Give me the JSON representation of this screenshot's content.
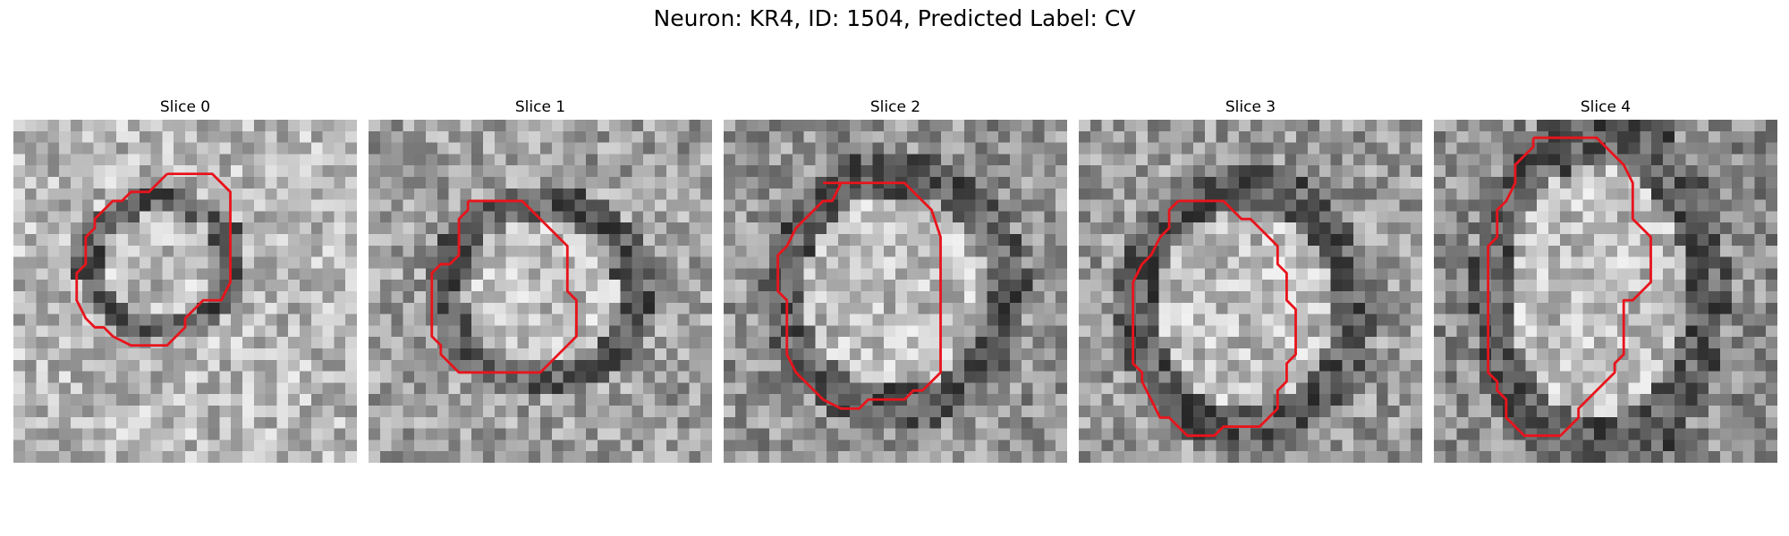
{
  "figure": {
    "title": "Neuron: KR4, ID: 1504, Predicted Label: CV"
  },
  "slices": [
    {
      "title": "Slice 0",
      "contour": [
        [
          17,
          6
        ],
        [
          22,
          6
        ],
        [
          24,
          8
        ],
        [
          24,
          18
        ],
        [
          23,
          20
        ],
        [
          21,
          20
        ],
        [
          19,
          22
        ],
        [
          19,
          23
        ],
        [
          17,
          25
        ],
        [
          13,
          25
        ],
        [
          11,
          24
        ],
        [
          10,
          23
        ],
        [
          9,
          23
        ],
        [
          8,
          22
        ],
        [
          7,
          20
        ],
        [
          7,
          17
        ],
        [
          8,
          16
        ],
        [
          8,
          13
        ],
        [
          9,
          12
        ],
        [
          9,
          11
        ],
        [
          10,
          10
        ],
        [
          11,
          9
        ],
        [
          12,
          9
        ],
        [
          13,
          8
        ],
        [
          15,
          8
        ],
        [
          17,
          6
        ]
      ]
    },
    {
      "title": "Slice 1",
      "contour": [
        [
          11,
          9
        ],
        [
          17,
          9
        ],
        [
          22,
          14
        ],
        [
          22,
          19
        ],
        [
          23,
          20
        ],
        [
          23,
          24
        ],
        [
          19,
          28
        ],
        [
          10,
          28
        ],
        [
          8,
          26
        ],
        [
          8,
          25
        ],
        [
          7,
          24
        ],
        [
          7,
          17
        ],
        [
          8,
          16
        ],
        [
          9,
          16
        ],
        [
          10,
          15
        ],
        [
          10,
          11
        ],
        [
          11,
          10
        ],
        [
          11,
          9
        ]
      ]
    },
    {
      "title": "Slice 2",
      "contour": [
        [
          11,
          7
        ],
        [
          20,
          7
        ],
        [
          23,
          10
        ],
        [
          24,
          13
        ],
        [
          24,
          28
        ],
        [
          22,
          30
        ],
        [
          21,
          30
        ],
        [
          20,
          31
        ],
        [
          16,
          31
        ],
        [
          15,
          32
        ],
        [
          13,
          32
        ],
        [
          11,
          31
        ],
        [
          9,
          29
        ],
        [
          8,
          28
        ],
        [
          7,
          26
        ],
        [
          7,
          20
        ],
        [
          6,
          19
        ],
        [
          6,
          15
        ],
        [
          7,
          14
        ],
        [
          8,
          12
        ],
        [
          11,
          9
        ],
        [
          12,
          9
        ],
        [
          13,
          7
        ]
      ]
    },
    {
      "title": "Slice 3",
      "contour": [
        [
          11,
          9
        ],
        [
          16,
          9
        ],
        [
          18,
          11
        ],
        [
          19,
          11
        ],
        [
          20,
          12
        ],
        [
          22,
          14
        ],
        [
          22,
          16
        ],
        [
          23,
          17
        ],
        [
          23,
          20
        ],
        [
          24,
          21
        ],
        [
          24,
          26
        ],
        [
          23,
          27
        ],
        [
          23,
          29
        ],
        [
          22,
          30
        ],
        [
          22,
          32
        ],
        [
          20,
          34
        ],
        [
          16,
          34
        ],
        [
          15,
          35
        ],
        [
          12,
          35
        ],
        [
          10,
          33
        ],
        [
          9,
          33
        ],
        [
          8,
          31
        ],
        [
          7,
          29
        ],
        [
          7,
          28
        ],
        [
          6,
          27
        ],
        [
          6,
          18
        ],
        [
          7,
          16
        ],
        [
          8,
          15
        ],
        [
          9,
          13
        ],
        [
          10,
          12
        ],
        [
          10,
          10
        ],
        [
          11,
          9
        ]
      ]
    },
    {
      "title": "Slice 4",
      "contour": [
        [
          11,
          2
        ],
        [
          18,
          2
        ],
        [
          21,
          5
        ],
        [
          22,
          7
        ],
        [
          22,
          11
        ],
        [
          23,
          12
        ],
        [
          24,
          13
        ],
        [
          24,
          18
        ],
        [
          23,
          19
        ],
        [
          22,
          20
        ],
        [
          21,
          20
        ],
        [
          21,
          26
        ],
        [
          20,
          27
        ],
        [
          20,
          28
        ],
        [
          18,
          30
        ],
        [
          17,
          31
        ],
        [
          16,
          32
        ],
        [
          16,
          33
        ],
        [
          14,
          35
        ],
        [
          10,
          35
        ],
        [
          8,
          33
        ],
        [
          8,
          31
        ],
        [
          7,
          30
        ],
        [
          7,
          29
        ],
        [
          6,
          28
        ],
        [
          6,
          23
        ],
        [
          6,
          14
        ],
        [
          7,
          13
        ],
        [
          7,
          10
        ],
        [
          8,
          9
        ],
        [
          9,
          7
        ],
        [
          9,
          5
        ],
        [
          11,
          3
        ],
        [
          11,
          2
        ]
      ]
    }
  ],
  "colors": {
    "contour": "#e8141c"
  }
}
